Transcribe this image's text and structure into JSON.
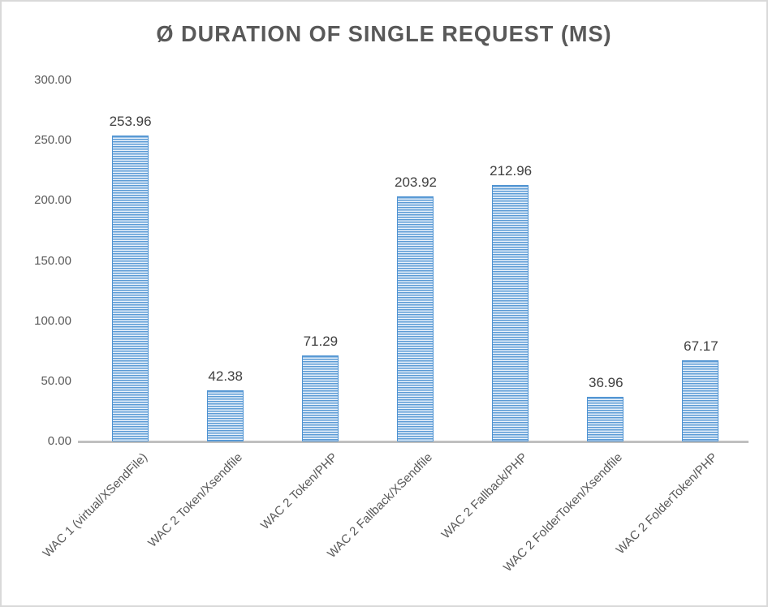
{
  "chart_data": {
    "type": "bar",
    "title": "Ø DURATION OF SINGLE REQUEST (MS)",
    "categories": [
      "WAC 1 (virtual/XSendFile)",
      "WAC 2 Token/Xsendfile",
      "WAC 2 Token/PHP",
      "WAC 2 Fallback/XSendfile",
      "WAC 2 Fallback/PHP",
      "WAC 2 FolderToken/Xsendfile",
      "WAC 2 FolderToken/PHP"
    ],
    "values": [
      253.96,
      42.38,
      71.29,
      203.92,
      212.96,
      36.96,
      67.17
    ],
    "value_labels": [
      "253.96",
      "42.38",
      "71.29",
      "203.92",
      "212.96",
      "36.96",
      "67.17"
    ],
    "xlabel": "",
    "ylabel": "",
    "ylim": [
      0,
      300
    ],
    "ytick_interval": 50,
    "ytick_labels": [
      "0.00",
      "50.00",
      "100.00",
      "150.00",
      "200.00",
      "250.00",
      "300.00"
    ],
    "grid": false,
    "legend": false,
    "bar_fill_pattern": "horizontal-stripes",
    "category_label_rotation_deg": 45,
    "colors": {
      "bar_stripe_blue": "#5b9bd5",
      "bar_stripe_light": "#eaf2fb",
      "bar_border": "#4f93d2",
      "title_text": "#595959",
      "axis_text": "#595959",
      "value_label_text": "#404040",
      "axis_line": "#bfbfbf",
      "chart_border": "#d9d9d9",
      "background": "#ffffff"
    }
  }
}
